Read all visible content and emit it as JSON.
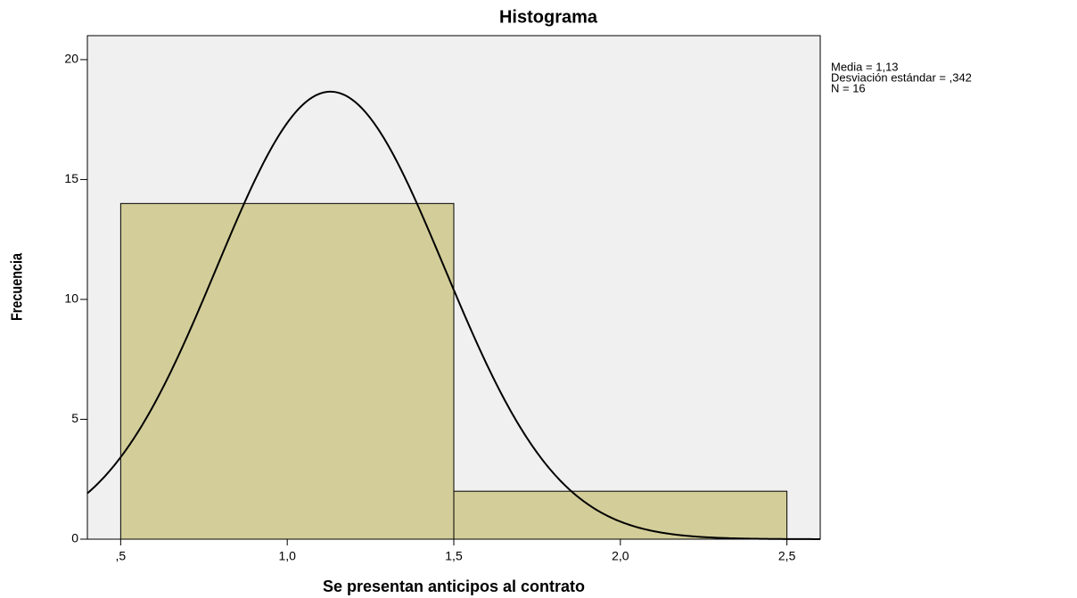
{
  "chart_data": {
    "type": "histogram",
    "title": "Histograma",
    "x_label": "Se presentan anticipos al contrato",
    "y_label": "Frecuencia",
    "bins": [
      0.5,
      1.5,
      2.5
    ],
    "values": [
      14,
      2
    ],
    "color": "#d3cd99",
    "background": "#f0f0f0",
    "xlim": [
      0.4,
      2.6
    ],
    "ylim": [
      0,
      21
    ],
    "xticks": [
      {
        "value": 0.5,
        "label": ",5"
      },
      {
        "value": 1.0,
        "label": "1,0"
      },
      {
        "value": 1.5,
        "label": "1,5"
      },
      {
        "value": 2.0,
        "label": "2,0"
      },
      {
        "value": 2.5,
        "label": "2,5"
      }
    ],
    "yticks": [
      0,
      5,
      10,
      15,
      20
    ],
    "normal_curve": true,
    "stats": [
      {
        "value": 1.13,
        "label": "Media = 1,13"
      },
      {
        "value": 0.342,
        "label": "Desviación estándar = ,342"
      },
      {
        "value": 16,
        "label": "N = 16"
      }
    ]
  }
}
